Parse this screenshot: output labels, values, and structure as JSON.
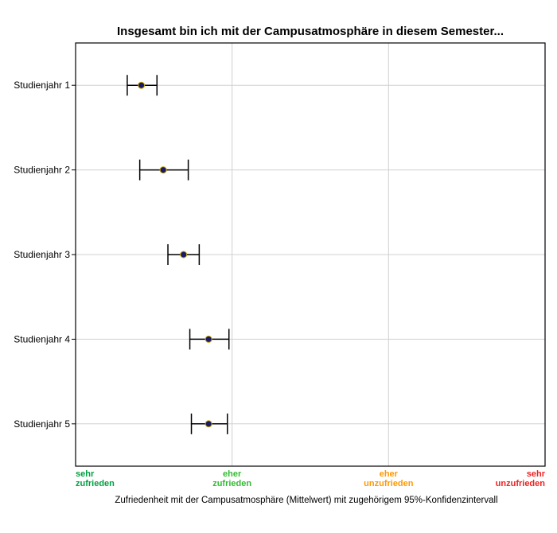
{
  "chart_data": {
    "type": "scatter",
    "title": "Insgesamt bin ich mit der Campusatmosphäre in diesem Semester...",
    "xlabel": "Zufriedenheit mit der Campusatmosphäre (Mittelwert) mit zugehörigem 95%-Konfidenzintervall",
    "ylabel": "",
    "xlim": [
      1,
      4
    ],
    "grid": true,
    "categories": [
      "Studienjahr 1",
      "Studienjahr 2",
      "Studienjahr 3",
      "Studienjahr 4",
      "Studienjahr 5"
    ],
    "series": [
      {
        "mean": [
          1.42,
          1.56,
          1.69,
          1.85,
          1.85
        ],
        "lower": [
          1.33,
          1.41,
          1.59,
          1.73,
          1.74
        ],
        "upper": [
          1.52,
          1.72,
          1.79,
          1.98,
          1.97
        ]
      }
    ],
    "x_ticks": [
      {
        "value": 1,
        "line1": "sehr",
        "line2": "zufrieden",
        "color": "#00a040"
      },
      {
        "value": 2,
        "line1": "eher",
        "line2": "zufrieden",
        "color": "#33bb33"
      },
      {
        "value": 3,
        "line1": "eher",
        "line2": "unzufrieden",
        "color": "#ff9900"
      },
      {
        "value": 4,
        "line1": "sehr",
        "line2": "unzufrieden",
        "color": "#ee2222"
      }
    ],
    "colors": {
      "marker_fill": "#1a1a66",
      "marker_stroke": "#c8a800",
      "errorbar": "#000000",
      "grid": "#d0d0d0",
      "frame": "#000000"
    }
  }
}
